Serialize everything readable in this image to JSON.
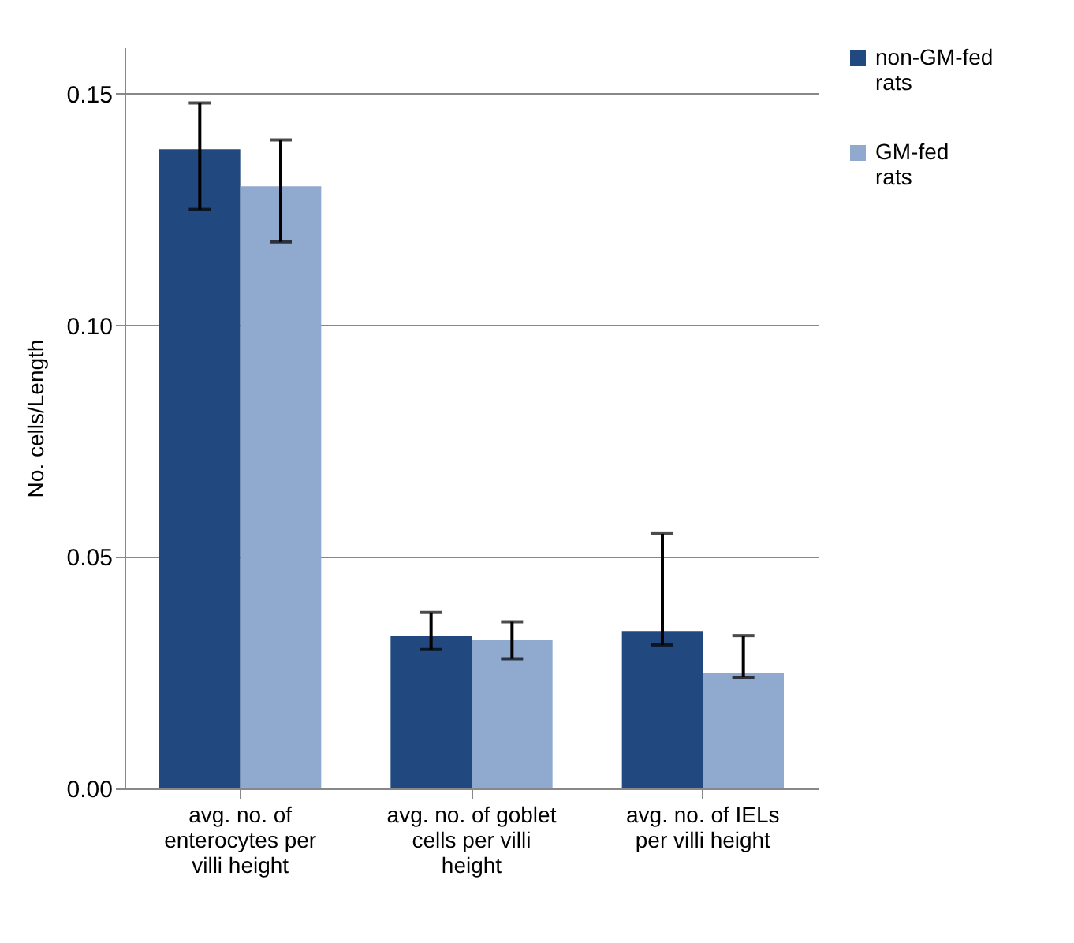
{
  "chart_data": {
    "type": "bar",
    "ylabel": "No. cells/Length",
    "categories": [
      "avg. no. of enterocytes per villi height",
      "avg. no. of goblet cells per villi height",
      "avg. no. of IELs per villi height"
    ],
    "series": [
      {
        "name": "non-GM-fed rats",
        "color": "#22497f",
        "values": [
          0.138,
          0.033,
          0.034
        ],
        "errors": [
          [
            0.125,
            0.148
          ],
          [
            0.03,
            0.038
          ],
          [
            0.031,
            0.055
          ]
        ]
      },
      {
        "name": "GM-fed rats",
        "color": "#8fa9cf",
        "values": [
          0.13,
          0.032,
          0.025
        ],
        "errors": [
          [
            0.118,
            0.14
          ],
          [
            0.028,
            0.036
          ],
          [
            0.024,
            0.033
          ]
        ]
      }
    ],
    "ylim": [
      0,
      0.16
    ],
    "yticks": [
      {
        "value": 0,
        "label": "0.00"
      },
      {
        "value": 0.05,
        "label": "0.05"
      },
      {
        "value": 0.1,
        "label": "0.10"
      },
      {
        "value": 0.15,
        "label": "0.15"
      }
    ],
    "grid": "y",
    "legend": "right"
  }
}
